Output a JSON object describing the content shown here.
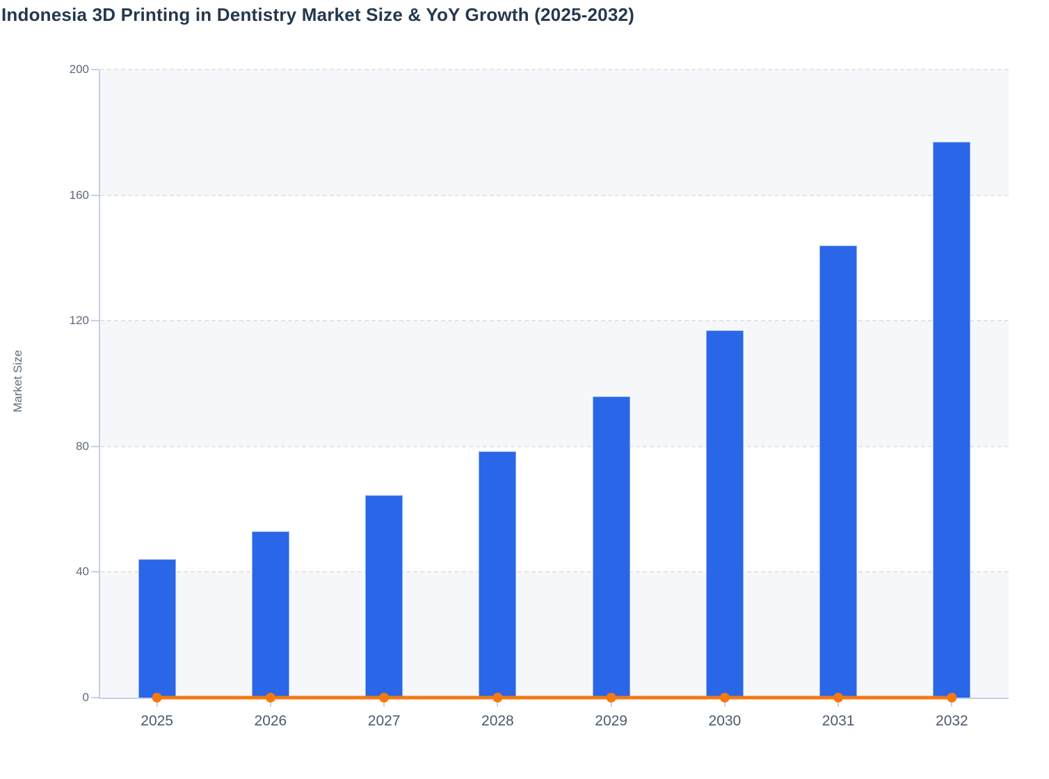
{
  "page": {
    "title": "Indonesia 3D Printing in Dentistry Market Size & YoY Growth (2025-2032)"
  },
  "chart_data": {
    "type": "bar",
    "title": "Indonesia 3D Printing in Dentistry Market Size & YoY Growth (2025-2032)",
    "categories": [
      "2025",
      "2026",
      "2027",
      "2028",
      "2029",
      "2030",
      "2031",
      "2032"
    ],
    "series": [
      {
        "name": "Market Size",
        "type": "bar",
        "values": [
          44,
          53,
          64.5,
          78.5,
          96,
          117,
          144,
          177
        ]
      },
      {
        "name": "YoY Growth",
        "type": "line",
        "values": [
          0,
          0,
          0,
          0,
          0,
          0,
          0,
          0
        ]
      }
    ],
    "xlabel": "",
    "ylabel": "Market Size",
    "ylim": [
      0,
      200
    ],
    "yticks": [
      0,
      40,
      80,
      120,
      160,
      200
    ],
    "grid": "horizontal-dashed",
    "plot_bands": "alternating-horizontal",
    "legend": "none"
  },
  "colors": {
    "title_text": "#24384e",
    "bar_fill": "#2a66e8",
    "bar_border": "#8fb0f0",
    "line_stroke": "#f5790f",
    "axis_line": "#c7cee8",
    "grid_line": "#e2e4e9",
    "band_fill": "#f6f7fa",
    "tick_text": "#5d687a",
    "category_text": "#4a5a70"
  }
}
